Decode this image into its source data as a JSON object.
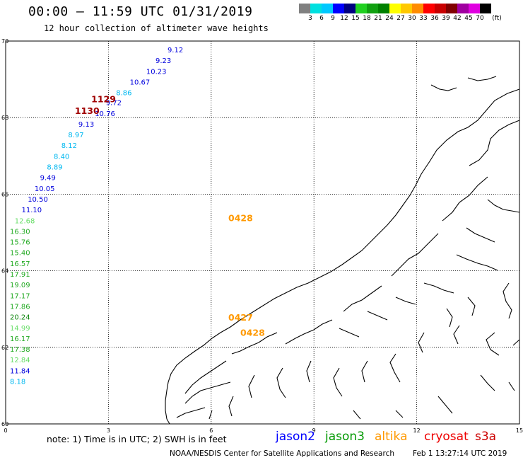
{
  "header": {
    "title": "00:00 – 11:59 UTC 01/31/2019",
    "subtitle": "12 hour collection of altimeter wave heights"
  },
  "legend": {
    "unit_label": "(ft)",
    "bins": [
      {
        "label": "",
        "color": "#808080"
      },
      {
        "label": "3",
        "color": "#00e0e0"
      },
      {
        "label": "6",
        "color": "#00c8ff"
      },
      {
        "label": "9",
        "color": "#0000ff"
      },
      {
        "label": "12",
        "color": "#000080"
      },
      {
        "label": "15",
        "color": "#20d020"
      },
      {
        "label": "18",
        "color": "#10a010"
      },
      {
        "label": "21",
        "color": "#008000"
      },
      {
        "label": "24",
        "color": "#ffff00"
      },
      {
        "label": "27",
        "color": "#ffc800"
      },
      {
        "label": "30",
        "color": "#ff8c00"
      },
      {
        "label": "33",
        "color": "#ff0000"
      },
      {
        "label": "36",
        "color": "#c80000"
      },
      {
        "label": "39",
        "color": "#800000"
      },
      {
        "label": "42",
        "color": "#a000a0"
      },
      {
        "label": "45",
        "color": "#e000e0"
      },
      {
        "label": "70",
        "color": "#000000"
      }
    ]
  },
  "map": {
    "x_ticks": [
      "0",
      "3",
      "6",
      "9",
      "12",
      "15"
    ],
    "y_ticks": [
      "70",
      "68",
      "66",
      "64",
      "62",
      "60"
    ],
    "track_points": [
      {
        "lon": 4.6,
        "lat": 69.76,
        "value": "9.12",
        "color": "#0000dd"
      },
      {
        "lon": 4.25,
        "lat": 69.48,
        "value": "9.23",
        "color": "#0000dd"
      },
      {
        "lon": 3.98,
        "lat": 69.2,
        "value": "10.23",
        "color": "#0000dd"
      },
      {
        "lon": 3.5,
        "lat": 68.92,
        "value": "10.67",
        "color": "#0000dd"
      },
      {
        "lon": 3.1,
        "lat": 68.64,
        "value": "8.86",
        "color": "#00b8f0"
      },
      {
        "lon": 2.8,
        "lat": 68.38,
        "value": "9.72",
        "color": "#0000dd"
      },
      {
        "lon": 2.48,
        "lat": 68.1,
        "value": "10.76",
        "color": "#0000dd"
      },
      {
        "lon": 2.0,
        "lat": 67.82,
        "value": "9.13",
        "color": "#0000dd"
      },
      {
        "lon": 1.7,
        "lat": 67.54,
        "value": "8.97",
        "color": "#00b8f0"
      },
      {
        "lon": 1.5,
        "lat": 67.26,
        "value": "8.12",
        "color": "#00b8f0"
      },
      {
        "lon": 1.28,
        "lat": 66.98,
        "value": "8.40",
        "color": "#00b8f0"
      },
      {
        "lon": 1.08,
        "lat": 66.7,
        "value": "8.89",
        "color": "#00b8f0"
      },
      {
        "lon": 0.88,
        "lat": 66.42,
        "value": "9.49",
        "color": "#0000dd"
      },
      {
        "lon": 0.72,
        "lat": 66.14,
        "value": "10.05",
        "color": "#0000dd"
      },
      {
        "lon": 0.52,
        "lat": 65.86,
        "value": "10.50",
        "color": "#0000dd"
      },
      {
        "lon": 0.34,
        "lat": 65.58,
        "value": "11.10",
        "color": "#0000dd"
      },
      {
        "lon": 0.14,
        "lat": 65.3,
        "value": "12.68",
        "color": "#66dd66"
      },
      {
        "lon": 0.0,
        "lat": 65.02,
        "value": "16.30",
        "color": "#22aa22"
      },
      {
        "lon": 0.0,
        "lat": 64.74,
        "value": "15.76",
        "color": "#22aa22"
      },
      {
        "lon": 0.0,
        "lat": 64.46,
        "value": "15.40",
        "color": "#22aa22"
      },
      {
        "lon": 0.0,
        "lat": 64.18,
        "value": "16.57",
        "color": "#22aa22"
      },
      {
        "lon": 0.0,
        "lat": 63.9,
        "value": "17.91",
        "color": "#22aa22"
      },
      {
        "lon": 0.0,
        "lat": 63.62,
        "value": "19.09",
        "color": "#22aa22"
      },
      {
        "lon": 0.0,
        "lat": 63.34,
        "value": "17.17",
        "color": "#22aa22"
      },
      {
        "lon": 0.0,
        "lat": 63.06,
        "value": "17.86",
        "color": "#22aa22"
      },
      {
        "lon": 0.0,
        "lat": 62.78,
        "value": "20.24",
        "color": "#118811"
      },
      {
        "lon": 0.0,
        "lat": 62.5,
        "value": "14.99",
        "color": "#66dd66"
      },
      {
        "lon": 0.0,
        "lat": 62.22,
        "value": "16.17",
        "color": "#22aa22"
      },
      {
        "lon": 0.0,
        "lat": 61.94,
        "value": "17.38",
        "color": "#22aa22"
      },
      {
        "lon": 0.0,
        "lat": 61.66,
        "value": "12.84",
        "color": "#66dd66"
      },
      {
        "lon": 0.0,
        "lat": 61.38,
        "value": "11.84",
        "color": "#0000dd"
      },
      {
        "lon": 0.0,
        "lat": 61.1,
        "value": "8.18",
        "color": "#00b8f0"
      }
    ],
    "pass_labels": [
      {
        "lon": 2.5,
        "lat": 68.4,
        "text": "1129",
        "color": "#a00000"
      },
      {
        "lon": 2.02,
        "lat": 68.1,
        "text": "1130",
        "color": "#a00000"
      },
      {
        "lon": 6.5,
        "lat": 65.3,
        "text": "0428",
        "color": "#ff9900"
      },
      {
        "lon": 6.5,
        "lat": 62.7,
        "text": "0427",
        "color": "#ff9900"
      },
      {
        "lon": 6.85,
        "lat": 62.3,
        "text": "0428",
        "color": "#ff9900"
      }
    ]
  },
  "footer": {
    "note": "note: 1) Time is in UTC; 2) SWH is in feet",
    "satellites": [
      {
        "name": "jason2",
        "color": "#0000ff"
      },
      {
        "name": "jason3",
        "color": "#009900"
      },
      {
        "name": "altika",
        "color": "#ff9900"
      },
      {
        "name": "cryosat",
        "color": "#ee0000"
      },
      {
        "name": "s3a",
        "color": "#cc0000"
      }
    ],
    "credit": "NOAA/NESDIS Center for Satellite Applications and Research",
    "timestamp": "Feb  1 13:27:14 UTC 2019"
  }
}
